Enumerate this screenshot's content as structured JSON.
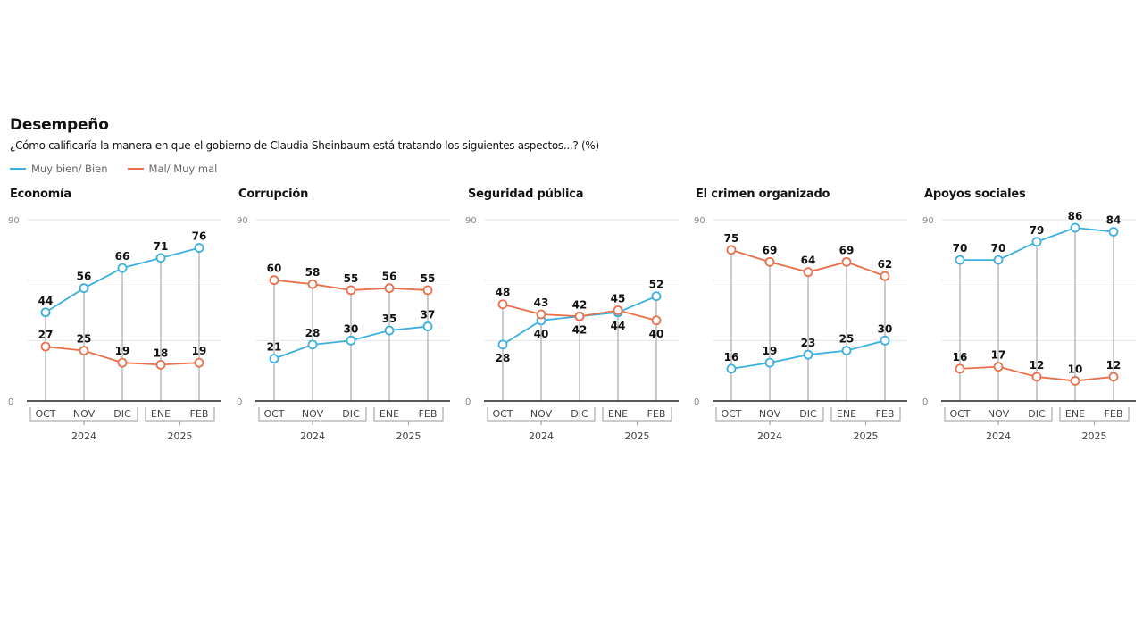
{
  "header": {
    "title": "Desempeño",
    "subtitle": "¿Cómo calificaría la manera en que el gobierno de Claudia Sheinbaum está tratando los siguientes aspectos...? (%)"
  },
  "legend": [
    {
      "label": "Muy bien/ Bien",
      "color": "#3bb0e0"
    },
    {
      "label": "Mal/ Muy mal",
      "color": "#ea6f4b"
    }
  ],
  "chart_data": [
    {
      "type": "line",
      "title": "Economía",
      "categories": [
        "OCT",
        "NOV",
        "DIC",
        "ENE",
        "FEB"
      ],
      "year_groups": [
        {
          "label": "2024",
          "from": 0,
          "to": 2
        },
        {
          "label": "2025",
          "from": 3,
          "to": 4
        }
      ],
      "ylim": [
        0,
        90
      ],
      "yticks": [
        0,
        90
      ],
      "gridlines": [
        0,
        30,
        60,
        90
      ],
      "series": [
        {
          "name": "Muy bien/ Bien",
          "values": [
            44,
            56,
            66,
            71,
            76
          ],
          "label_pos": [
            "above",
            "above",
            "above",
            "above",
            "above"
          ]
        },
        {
          "name": "Mal/ Muy mal",
          "values": [
            27,
            25,
            19,
            18,
            19
          ],
          "label_pos": [
            "above",
            "above",
            "above",
            "above",
            "above"
          ]
        }
      ]
    },
    {
      "type": "line",
      "title": "Corrupción",
      "categories": [
        "OCT",
        "NOV",
        "DIC",
        "ENE",
        "FEB"
      ],
      "year_groups": [
        {
          "label": "2024",
          "from": 0,
          "to": 2
        },
        {
          "label": "2025",
          "from": 3,
          "to": 4
        }
      ],
      "ylim": [
        0,
        90
      ],
      "yticks": [
        0,
        90
      ],
      "gridlines": [
        0,
        30,
        60,
        90
      ],
      "series": [
        {
          "name": "Muy bien/ Bien",
          "values": [
            21,
            28,
            30,
            35,
            37
          ],
          "label_pos": [
            "above",
            "above",
            "above",
            "above",
            "above"
          ]
        },
        {
          "name": "Mal/ Muy mal",
          "values": [
            60,
            58,
            55,
            56,
            55
          ],
          "label_pos": [
            "above",
            "above",
            "above",
            "above",
            "above"
          ]
        }
      ]
    },
    {
      "type": "line",
      "title": "Seguridad pública",
      "categories": [
        "OCT",
        "NOV",
        "DIC",
        "ENE",
        "FEB"
      ],
      "year_groups": [
        {
          "label": "2024",
          "from": 0,
          "to": 2
        },
        {
          "label": "2025",
          "from": 3,
          "to": 4
        }
      ],
      "ylim": [
        0,
        90
      ],
      "yticks": [
        0,
        90
      ],
      "gridlines": [
        0,
        30,
        60,
        90
      ],
      "series": [
        {
          "name": "Muy bien/ Bien",
          "values": [
            28,
            40,
            42,
            44,
            52
          ],
          "label_pos": [
            "below",
            "below",
            "below",
            "below",
            "above"
          ]
        },
        {
          "name": "Mal/ Muy mal",
          "values": [
            48,
            43,
            42,
            45,
            40
          ],
          "label_pos": [
            "above",
            "above",
            "above",
            "above",
            "below"
          ]
        }
      ]
    },
    {
      "type": "line",
      "title": "El crimen organizado",
      "categories": [
        "OCT",
        "NOV",
        "DIC",
        "ENE",
        "FEB"
      ],
      "year_groups": [
        {
          "label": "2024",
          "from": 0,
          "to": 2
        },
        {
          "label": "2025",
          "from": 3,
          "to": 4
        }
      ],
      "ylim": [
        0,
        90
      ],
      "yticks": [
        0,
        90
      ],
      "gridlines": [
        0,
        30,
        60,
        90
      ],
      "series": [
        {
          "name": "Muy bien/ Bien",
          "values": [
            16,
            19,
            23,
            25,
            30
          ],
          "label_pos": [
            "above",
            "above",
            "above",
            "above",
            "above"
          ]
        },
        {
          "name": "Mal/ Muy mal",
          "values": [
            75,
            69,
            64,
            69,
            62
          ],
          "label_pos": [
            "above",
            "above",
            "above",
            "above",
            "above"
          ]
        }
      ]
    },
    {
      "type": "line",
      "title": "Apoyos sociales",
      "categories": [
        "OCT",
        "NOV",
        "DIC",
        "ENE",
        "FEB"
      ],
      "year_groups": [
        {
          "label": "2024",
          "from": 0,
          "to": 2
        },
        {
          "label": "2025",
          "from": 3,
          "to": 4
        }
      ],
      "ylim": [
        0,
        90
      ],
      "yticks": [
        0,
        90
      ],
      "gridlines": [
        0,
        30,
        60,
        90
      ],
      "series": [
        {
          "name": "Muy bien/ Bien",
          "values": [
            70,
            70,
            79,
            86,
            84
          ],
          "label_pos": [
            "above",
            "above",
            "above",
            "above",
            "above"
          ]
        },
        {
          "name": "Mal/ Muy mal",
          "values": [
            16,
            17,
            12,
            10,
            12
          ],
          "label_pos": [
            "above",
            "above",
            "above",
            "above",
            "above"
          ]
        }
      ]
    }
  ]
}
